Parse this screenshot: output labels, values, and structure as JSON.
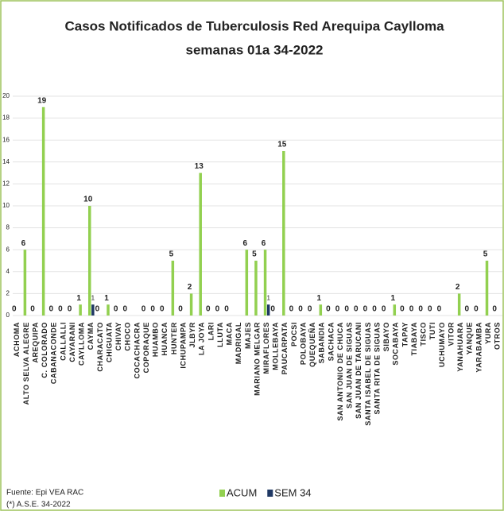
{
  "chart_data": {
    "type": "bar",
    "title": "Casos Notificados de Tuberculosis Red Arequipa Caylloma",
    "subtitle": "semanas 01a 34-2022",
    "categories": [
      "ACHOMA",
      "ALTO SELVA ALEGRE",
      "AREQUIPA",
      "C. COLORADO",
      "CABANACONDE",
      "CALLALLI",
      "CAYARANI",
      "CAYLLOMA",
      "CAYMA",
      "CHARACATO",
      "CHIGUATA",
      "CHIVAY",
      "CHOCO",
      "COCACHACRA",
      "COPORAQUE",
      "HUAMBO",
      "HUANCA",
      "HUNTER",
      "ICHUPAMPA",
      "JLBYR",
      "LA JOYA",
      "LARI",
      "LLUTA",
      "MACA",
      "MADRIGAL",
      "MAJES",
      "MARIANO MELGAR",
      "MIRAFLORES",
      "MOLLEBAYA",
      "PAUCARPATA",
      "POCSI",
      "POLOBAYA",
      "QUEQUEÑA",
      "SABANDIA",
      "SACHACA",
      "SAN ANTONIO DE CHUCA",
      "SAN JUAN DE SIGUAS",
      "SAN JUAN DE TARUCANI",
      "SANTA ISABEL DE SIGUAS",
      "SANTA RITA DE SIGUAS",
      "SIBAYO",
      "SOCABAYA",
      "TAPAY",
      "TIABAYA",
      "TISCO",
      "TUTI",
      "UCHUMAYO",
      "VITOR",
      "YANAHUARA",
      "YANQUE",
      "YARABAMBA",
      "YURA",
      "OTROS"
    ],
    "series": [
      {
        "name": "ACUM",
        "color": "#92d050",
        "values": [
          0,
          6,
          0,
          19,
          0,
          0,
          0,
          1,
          10,
          0,
          1,
          0,
          0,
          null,
          0,
          0,
          0,
          5,
          0,
          2,
          13,
          0,
          0,
          0,
          null,
          6,
          5,
          6,
          0,
          15,
          0,
          0,
          0,
          1,
          0,
          0,
          0,
          0,
          0,
          0,
          0,
          1,
          0,
          0,
          0,
          0,
          0,
          null,
          2,
          0,
          0,
          5,
          0
        ]
      },
      {
        "name": "SEM 34",
        "color": "#1f3864",
        "values": [
          null,
          null,
          null,
          null,
          null,
          null,
          null,
          null,
          1,
          null,
          null,
          null,
          null,
          null,
          null,
          null,
          null,
          null,
          null,
          null,
          null,
          null,
          null,
          null,
          null,
          null,
          null,
          1,
          null,
          null,
          null,
          null,
          null,
          null,
          null,
          null,
          null,
          null,
          null,
          null,
          null,
          null,
          null,
          null,
          null,
          null,
          null,
          null,
          null,
          null,
          null,
          null,
          null
        ]
      }
    ],
    "ylim": [
      0,
      20
    ],
    "yticks": [
      0,
      2,
      4,
      6,
      8,
      10,
      12,
      14,
      16,
      18,
      20
    ],
    "grid": true,
    "legend": "bottom",
    "source": "Fuente: Epi VEA RAC",
    "note": "(*) A.S.E. 34-2022"
  }
}
